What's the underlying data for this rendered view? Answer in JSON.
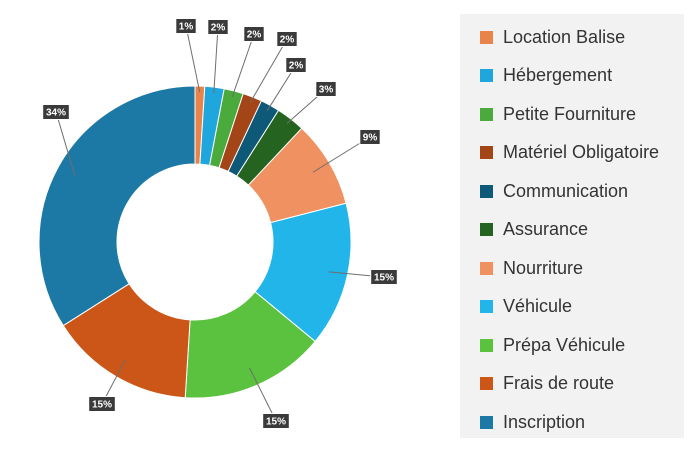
{
  "chart_data": {
    "type": "pie",
    "variant": "donut",
    "categories": [
      "Location Balise",
      "Hébergement",
      "Petite Fourniture",
      "Matériel Obligatoire",
      "Communication",
      "Assurance",
      "Nourriture",
      "Véhicule",
      "Prépa Véhicule",
      "Frais de route",
      "Inscription"
    ],
    "values": [
      1,
      2,
      2,
      2,
      2,
      3,
      9,
      15,
      15,
      15,
      34
    ],
    "labels": [
      "1%",
      "2%",
      "2%",
      "2%",
      "2%",
      "3%",
      "9%",
      "15%",
      "15%",
      "15%",
      "34%"
    ],
    "colors": [
      "#e8834a",
      "#1fa6dc",
      "#4aaa3c",
      "#a34516",
      "#0e5878",
      "#246420",
      "#ef9160",
      "#22b5ea",
      "#5ac23e",
      "#cc5518",
      "#1c78a4"
    ],
    "legend_position": "right",
    "title": ""
  }
}
